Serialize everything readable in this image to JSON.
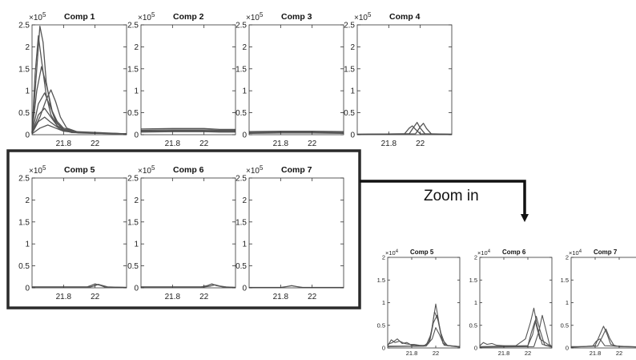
{
  "annotation": {
    "zoom_label": "Zoom in"
  },
  "chart_data": [
    {
      "type": "line",
      "title": "Comp 1",
      "multiplier": "×10",
      "exponent": "5",
      "xlim": [
        21.6,
        22.2
      ],
      "ylim": [
        0,
        2.5
      ],
      "xticks": [
        21.8,
        22
      ],
      "xtick_labels": [
        "21.8",
        "22"
      ],
      "yticks": [
        0,
        0.5,
        1,
        1.5,
        2,
        2.5
      ],
      "ytick_labels": [
        "0",
        "0.5",
        "1",
        "1.5",
        "2",
        "2.5"
      ],
      "series": [
        {
          "x": [
            21.6,
            21.63,
            21.65,
            21.67,
            21.69,
            21.72,
            21.75,
            21.8,
            21.9,
            22.0,
            22.2
          ],
          "y": [
            0.05,
            1.5,
            2.47,
            2.1,
            1.2,
            0.6,
            0.3,
            0.12,
            0.05,
            0.03,
            0.02
          ]
        },
        {
          "x": [
            21.6,
            21.62,
            21.64,
            21.66,
            21.69,
            21.72,
            21.76,
            21.8,
            21.9,
            22.2
          ],
          "y": [
            0.05,
            1.4,
            2.25,
            1.7,
            0.9,
            0.45,
            0.2,
            0.1,
            0.04,
            0.02
          ]
        },
        {
          "x": [
            21.6,
            21.63,
            21.66,
            21.7,
            21.73,
            21.76,
            21.8,
            21.9,
            22.2
          ],
          "y": [
            0.05,
            1.0,
            1.55,
            1.0,
            0.5,
            0.25,
            0.12,
            0.05,
            0.02
          ]
        },
        {
          "x": [
            21.6,
            21.65,
            21.69,
            21.72,
            21.75,
            21.78,
            21.82,
            21.9,
            22.2
          ],
          "y": [
            0.04,
            0.4,
            0.8,
            1.02,
            0.75,
            0.4,
            0.15,
            0.05,
            0.02
          ]
        },
        {
          "x": [
            21.6,
            21.64,
            21.68,
            21.72,
            21.76,
            21.8,
            21.9,
            22.2
          ],
          "y": [
            0.04,
            0.7,
            0.95,
            0.6,
            0.3,
            0.15,
            0.05,
            0.02
          ]
        },
        {
          "x": [
            21.6,
            21.64,
            21.68,
            21.72,
            21.76,
            21.82,
            22.2
          ],
          "y": [
            0.03,
            0.45,
            0.6,
            0.4,
            0.2,
            0.08,
            0.02
          ]
        },
        {
          "x": [
            21.6,
            21.64,
            21.68,
            21.72,
            21.78,
            21.85,
            22.2
          ],
          "y": [
            0.03,
            0.3,
            0.4,
            0.28,
            0.12,
            0.05,
            0.02
          ]
        },
        {
          "x": [
            21.6,
            21.65,
            21.7,
            21.75,
            21.8,
            21.9,
            22.2
          ],
          "y": [
            0.02,
            0.15,
            0.22,
            0.15,
            0.08,
            0.04,
            0.02
          ]
        }
      ]
    },
    {
      "type": "line",
      "title": "Comp 2",
      "multiplier": "×10",
      "exponent": "5",
      "xlim": [
        21.6,
        22.2
      ],
      "ylim": [
        0,
        2.5
      ],
      "xticks": [
        21.8,
        22
      ],
      "xtick_labels": [
        "21.8",
        "22"
      ],
      "yticks": [
        0,
        0.5,
        1,
        1.5,
        2,
        2.5
      ],
      "ytick_labels": [
        "0",
        "0.5",
        "1",
        "1.5",
        "2",
        "2.5"
      ],
      "series": [
        {
          "x": [
            21.6,
            21.8,
            22.0,
            22.1,
            22.2
          ],
          "y": [
            0.13,
            0.14,
            0.14,
            0.12,
            0.12
          ]
        },
        {
          "x": [
            21.6,
            21.8,
            22.0,
            22.1,
            22.2
          ],
          "y": [
            0.1,
            0.11,
            0.11,
            0.1,
            0.1
          ]
        },
        {
          "x": [
            21.6,
            21.8,
            22.0,
            22.1,
            22.2
          ],
          "y": [
            0.08,
            0.09,
            0.09,
            0.08,
            0.08
          ]
        },
        {
          "x": [
            21.6,
            21.8,
            22.0,
            22.1,
            22.2
          ],
          "y": [
            0.06,
            0.07,
            0.07,
            0.06,
            0.06
          ]
        }
      ]
    },
    {
      "type": "line",
      "title": "Comp 3",
      "multiplier": "×10",
      "exponent": "5",
      "xlim": [
        21.6,
        22.2
      ],
      "ylim": [
        0,
        2.5
      ],
      "xticks": [
        21.8,
        22
      ],
      "xtick_labels": [
        "21.8",
        "22"
      ],
      "yticks": [
        0,
        0.5,
        1,
        1.5,
        2,
        2.5
      ],
      "ytick_labels": [
        "0",
        "0.5",
        "1",
        "1.5",
        "2",
        "2.5"
      ],
      "series": [
        {
          "x": [
            21.6,
            21.8,
            22.0,
            22.2
          ],
          "y": [
            0.07,
            0.08,
            0.08,
            0.07
          ]
        },
        {
          "x": [
            21.6,
            21.8,
            22.0,
            22.2
          ],
          "y": [
            0.05,
            0.06,
            0.06,
            0.05
          ]
        },
        {
          "x": [
            21.6,
            21.8,
            22.0,
            22.2
          ],
          "y": [
            0.03,
            0.04,
            0.04,
            0.03
          ]
        }
      ]
    },
    {
      "type": "line",
      "title": "Comp 4",
      "multiplier": "×10",
      "exponent": "5",
      "xlim": [
        21.6,
        22.2
      ],
      "ylim": [
        0,
        2.5
      ],
      "xticks": [
        21.8,
        22
      ],
      "xtick_labels": [
        "21.8",
        "22"
      ],
      "yticks": [
        0,
        0.5,
        1,
        1.5,
        2,
        2.5
      ],
      "ytick_labels": [
        "0",
        "0.5",
        "1",
        "1.5",
        "2",
        "2.5"
      ],
      "series": [
        {
          "x": [
            21.6,
            21.9,
            21.93,
            21.95,
            21.97,
            22.0,
            22.2
          ],
          "y": [
            0.01,
            0.02,
            0.15,
            0.2,
            0.12,
            0.02,
            0.01
          ]
        },
        {
          "x": [
            21.6,
            21.93,
            21.96,
            21.98,
            22.0,
            22.03,
            22.2
          ],
          "y": [
            0.01,
            0.02,
            0.18,
            0.28,
            0.15,
            0.02,
            0.01
          ]
        },
        {
          "x": [
            21.6,
            21.97,
            22.0,
            22.02,
            22.04,
            22.07,
            22.2
          ],
          "y": [
            0.01,
            0.02,
            0.18,
            0.26,
            0.14,
            0.02,
            0.01
          ]
        }
      ]
    },
    {
      "type": "line",
      "title": "Comp 5",
      "multiplier": "×10",
      "exponent": "5",
      "xlim": [
        21.6,
        22.2
      ],
      "ylim": [
        0,
        2.5
      ],
      "xticks": [
        21.8,
        22
      ],
      "xtick_labels": [
        "21.8",
        "22"
      ],
      "yticks": [
        0,
        0.5,
        1,
        1.5,
        2,
        2.5
      ],
      "ytick_labels": [
        "0",
        "0.5",
        "1",
        "1.5",
        "2",
        "2.5"
      ],
      "series": [
        {
          "x": [
            21.6,
            21.95,
            21.98,
            22.0,
            22.03,
            22.06,
            22.2
          ],
          "y": [
            0.02,
            0.02,
            0.06,
            0.09,
            0.06,
            0.02,
            0.01
          ]
        },
        {
          "x": [
            21.6,
            21.97,
            22.0,
            22.02,
            22.05,
            22.08,
            22.2
          ],
          "y": [
            0.02,
            0.02,
            0.05,
            0.08,
            0.05,
            0.02,
            0.01
          ]
        }
      ]
    },
    {
      "type": "line",
      "title": "Comp 6",
      "multiplier": "×10",
      "exponent": "5",
      "xlim": [
        21.6,
        22.2
      ],
      "ylim": [
        0,
        2.5
      ],
      "xticks": [
        21.8,
        22
      ],
      "xtick_labels": [
        "21.8",
        "22"
      ],
      "yticks": [
        0,
        0.5,
        1,
        1.5,
        2,
        2.5
      ],
      "ytick_labels": [
        "0",
        "0.5",
        "1",
        "1.5",
        "2",
        "2.5"
      ],
      "series": [
        {
          "x": [
            21.6,
            21.98,
            22.02,
            22.05,
            22.08,
            22.12,
            22.2
          ],
          "y": [
            0.02,
            0.02,
            0.05,
            0.09,
            0.05,
            0.02,
            0.01
          ]
        },
        {
          "x": [
            21.6,
            22.0,
            22.04,
            22.07,
            22.1,
            22.14,
            22.2
          ],
          "y": [
            0.02,
            0.02,
            0.04,
            0.07,
            0.04,
            0.02,
            0.01
          ]
        }
      ]
    },
    {
      "type": "line",
      "title": "Comp 7",
      "multiplier": "×10",
      "exponent": "5",
      "xlim": [
        21.6,
        22.2
      ],
      "ylim": [
        0,
        2.5
      ],
      "xticks": [
        21.8,
        22
      ],
      "xtick_labels": [
        "21.8",
        "22"
      ],
      "yticks": [
        0,
        0.5,
        1,
        1.5,
        2,
        2.5
      ],
      "ytick_labels": [
        "0",
        "0.5",
        "1",
        "1.5",
        "2",
        "2.5"
      ],
      "series": [
        {
          "x": [
            21.6,
            21.8,
            21.84,
            21.87,
            21.9,
            21.94,
            22.2
          ],
          "y": [
            0.01,
            0.01,
            0.03,
            0.05,
            0.03,
            0.01,
            0.01
          ]
        }
      ]
    },
    {
      "type": "line",
      "title": "Comp 5",
      "multiplier": "×10",
      "exponent": "4",
      "xlim": [
        21.6,
        22.2
      ],
      "ylim": [
        0,
        2
      ],
      "xticks": [
        21.8,
        22
      ],
      "xtick_labels": [
        "21.8",
        "22"
      ],
      "yticks": [
        0,
        0.5,
        1,
        1.5,
        2
      ],
      "ytick_labels": [
        "0",
        "0.5",
        "1",
        "1.5",
        "2"
      ],
      "series": [
        {
          "x": [
            21.6,
            21.63,
            21.66,
            21.7,
            21.74,
            21.78,
            21.82,
            21.86,
            21.9,
            21.94,
            21.97,
            22.0,
            22.03,
            22.06,
            22.1,
            22.2
          ],
          "y": [
            0.05,
            0.18,
            0.12,
            0.15,
            0.1,
            0.08,
            0.08,
            0.06,
            0.05,
            0.1,
            0.45,
            0.97,
            0.5,
            0.1,
            0.05,
            0.03
          ]
        },
        {
          "x": [
            21.6,
            21.64,
            21.68,
            21.72,
            21.76,
            21.8,
            21.85,
            21.92,
            21.96,
            21.99,
            22.02,
            22.05,
            22.1,
            22.2
          ],
          "y": [
            0.08,
            0.12,
            0.2,
            0.1,
            0.12,
            0.06,
            0.05,
            0.06,
            0.3,
            0.8,
            0.6,
            0.2,
            0.05,
            0.03
          ]
        },
        {
          "x": [
            21.6,
            21.9,
            21.95,
            21.98,
            22.01,
            22.04,
            22.08,
            22.2
          ],
          "y": [
            0.04,
            0.04,
            0.15,
            0.55,
            0.72,
            0.35,
            0.06,
            0.03
          ]
        },
        {
          "x": [
            21.6,
            21.92,
            21.97,
            22.0,
            22.03,
            22.07,
            22.2
          ],
          "y": [
            0.03,
            0.04,
            0.2,
            0.45,
            0.3,
            0.06,
            0.02
          ]
        }
      ]
    },
    {
      "type": "line",
      "title": "Comp 6",
      "multiplier": "×10",
      "exponent": "4",
      "xlim": [
        21.6,
        22.2
      ],
      "ylim": [
        0,
        2
      ],
      "xticks": [
        21.8,
        22
      ],
      "xtick_labels": [
        "21.8",
        "22"
      ],
      "yticks": [
        0,
        0.5,
        1,
        1.5,
        2
      ],
      "ytick_labels": [
        "0",
        "0.5",
        "1",
        "1.5",
        "2"
      ],
      "series": [
        {
          "x": [
            21.6,
            21.63,
            21.66,
            21.7,
            21.74,
            21.8,
            21.9,
            21.98,
            22.02,
            22.05,
            22.08,
            22.12,
            22.2
          ],
          "y": [
            0.05,
            0.12,
            0.08,
            0.1,
            0.06,
            0.05,
            0.05,
            0.2,
            0.55,
            0.88,
            0.45,
            0.08,
            0.03
          ]
        },
        {
          "x": [
            21.6,
            21.8,
            22.0,
            22.04,
            22.07,
            22.1,
            22.14,
            22.2
          ],
          "y": [
            0.03,
            0.04,
            0.05,
            0.3,
            0.7,
            0.4,
            0.06,
            0.02
          ]
        },
        {
          "x": [
            21.6,
            22.05,
            22.09,
            22.12,
            22.15,
            22.18,
            22.2
          ],
          "y": [
            0.02,
            0.03,
            0.35,
            0.72,
            0.4,
            0.08,
            0.03
          ]
        },
        {
          "x": [
            21.6,
            22.0,
            22.03,
            22.06,
            22.1,
            22.2
          ],
          "y": [
            0.02,
            0.05,
            0.35,
            0.6,
            0.2,
            0.02
          ]
        }
      ]
    },
    {
      "type": "line",
      "title": "Comp 7",
      "multiplier": "×10",
      "exponent": "4",
      "xlim": [
        21.6,
        22.2
      ],
      "ylim": [
        0,
        2
      ],
      "xticks": [
        21.8,
        22
      ],
      "xtick_labels": [
        "21.8",
        "22"
      ],
      "yticks": [
        0,
        0.5,
        1,
        1.5,
        2
      ],
      "ytick_labels": [
        "0",
        "0.5",
        "1",
        "1.5",
        "2"
      ],
      "series": [
        {
          "x": [
            21.6,
            21.7,
            21.8,
            21.84,
            21.87,
            21.9,
            21.93,
            22.0,
            22.2
          ],
          "y": [
            0.03,
            0.03,
            0.05,
            0.3,
            0.48,
            0.3,
            0.08,
            0.03,
            0.02
          ]
        },
        {
          "x": [
            21.6,
            21.82,
            21.86,
            21.89,
            21.92,
            21.96,
            22.2
          ],
          "y": [
            0.02,
            0.04,
            0.25,
            0.42,
            0.22,
            0.04,
            0.02
          ]
        },
        {
          "x": [
            21.6,
            21.78,
            21.81,
            21.84,
            21.88,
            22.2
          ],
          "y": [
            0.02,
            0.04,
            0.15,
            0.2,
            0.05,
            0.02
          ]
        }
      ]
    }
  ]
}
